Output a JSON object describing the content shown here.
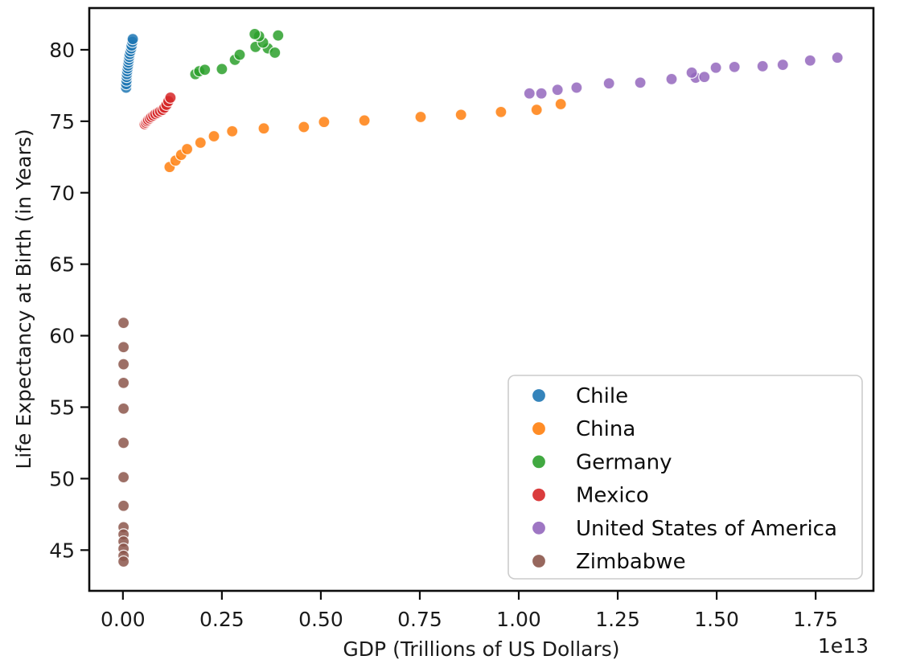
{
  "figure": {
    "background": "#ffffff"
  },
  "chart_data": {
    "type": "scatter",
    "title": "",
    "xlabel": "GDP (Trillions of US Dollars)",
    "ylabel": "Life Expectancy at Birth (in Years)",
    "x_offset_label": "1e13",
    "xlim": [
      -0.085,
      1.896
    ],
    "ylim": [
      42.15,
      82.92
    ],
    "grid": false,
    "axis_color": "#0d0d0d",
    "tick_label_color": "#1a1a1a",
    "xticks": [
      {
        "value": 0.0,
        "label": "0.00"
      },
      {
        "value": 0.25,
        "label": "0.25"
      },
      {
        "value": 0.5,
        "label": "0.50"
      },
      {
        "value": 0.75,
        "label": "0.75"
      },
      {
        "value": 1.0,
        "label": "1.00"
      },
      {
        "value": 1.25,
        "label": "1.25"
      },
      {
        "value": 1.5,
        "label": "1.50"
      },
      {
        "value": 1.75,
        "label": "1.75"
      }
    ],
    "yticks": [
      {
        "value": 45,
        "label": "45"
      },
      {
        "value": 50,
        "label": "50"
      },
      {
        "value": 55,
        "label": "55"
      },
      {
        "value": 60,
        "label": "60"
      },
      {
        "value": 65,
        "label": "65"
      },
      {
        "value": 70,
        "label": "70"
      },
      {
        "value": 75,
        "label": "75"
      },
      {
        "value": 80,
        "label": "80"
      }
    ],
    "legend": {
      "position": "lower right",
      "border_color": "#cccccc",
      "background": "#ffffff",
      "entries": [
        {
          "label": "Chile",
          "color": "#1f77b4"
        },
        {
          "label": "China",
          "color": "#ff7f0e"
        },
        {
          "label": "Germany",
          "color": "#2ca02c"
        },
        {
          "label": "Mexico",
          "color": "#d62728"
        },
        {
          "label": "United States of America",
          "color": "#9467bd"
        },
        {
          "label": "Zimbabwe",
          "color": "#8c564b"
        }
      ]
    },
    "series": [
      {
        "name": "Chile",
        "color": "#1f77b4",
        "points": [
          [
            0.008,
            77.35
          ],
          [
            0.0085,
            77.6
          ],
          [
            0.009,
            77.85
          ],
          [
            0.0095,
            78.1
          ],
          [
            0.01,
            78.3
          ],
          [
            0.011,
            78.5
          ],
          [
            0.012,
            78.7
          ],
          [
            0.013,
            78.9
          ],
          [
            0.014,
            79.1
          ],
          [
            0.015,
            79.3
          ],
          [
            0.016,
            79.5
          ],
          [
            0.017,
            79.7
          ],
          [
            0.019,
            79.9
          ],
          [
            0.021,
            80.1
          ],
          [
            0.022,
            80.3
          ],
          [
            0.024,
            80.55
          ],
          [
            0.025,
            80.75
          ]
        ]
      },
      {
        "name": "China",
        "color": "#ff7f0e",
        "points": [
          [
            0.118,
            71.8
          ],
          [
            0.133,
            72.25
          ],
          [
            0.147,
            72.65
          ],
          [
            0.162,
            73.05
          ],
          [
            0.196,
            73.5
          ],
          [
            0.23,
            73.95
          ],
          [
            0.276,
            74.3
          ],
          [
            0.356,
            74.5
          ],
          [
            0.457,
            74.6
          ],
          [
            0.508,
            74.95
          ],
          [
            0.61,
            75.05
          ],
          [
            0.752,
            75.3
          ],
          [
            0.854,
            75.45
          ],
          [
            0.955,
            75.65
          ],
          [
            1.045,
            75.8
          ],
          [
            1.106,
            76.2
          ]
        ]
      },
      {
        "name": "Germany",
        "color": "#2ca02c",
        "points": [
          [
            0.183,
            78.3
          ],
          [
            0.193,
            78.5
          ],
          [
            0.207,
            78.6
          ],
          [
            0.25,
            78.65
          ],
          [
            0.283,
            79.3
          ],
          [
            0.295,
            79.65
          ],
          [
            0.366,
            80.1
          ],
          [
            0.384,
            79.8
          ],
          [
            0.335,
            80.2
          ],
          [
            0.354,
            80.5
          ],
          [
            0.344,
            80.95
          ],
          [
            0.333,
            81.1
          ],
          [
            0.392,
            81.0
          ]
        ]
      },
      {
        "name": "Mexico",
        "color": "#d62728",
        "points": [
          [
            0.055,
            74.8
          ],
          [
            0.058,
            74.9
          ],
          [
            0.061,
            75.0
          ],
          [
            0.064,
            75.1
          ],
          [
            0.068,
            75.2
          ],
          [
            0.072,
            75.3
          ],
          [
            0.077,
            75.4
          ],
          [
            0.082,
            75.5
          ],
          [
            0.088,
            75.6
          ],
          [
            0.094,
            75.7
          ],
          [
            0.1,
            75.8
          ],
          [
            0.105,
            75.95
          ],
          [
            0.11,
            76.15
          ],
          [
            0.115,
            76.4
          ],
          [
            0.12,
            76.65
          ]
        ]
      },
      {
        "name": "United States of America",
        "color": "#9467bd",
        "points": [
          [
            1.027,
            76.95
          ],
          [
            1.057,
            76.95
          ],
          [
            1.098,
            77.2
          ],
          [
            1.146,
            77.35
          ],
          [
            1.228,
            77.65
          ],
          [
            1.307,
            77.7
          ],
          [
            1.386,
            77.95
          ],
          [
            1.447,
            78.05
          ],
          [
            1.469,
            78.1
          ],
          [
            1.437,
            78.4
          ],
          [
            1.498,
            78.75
          ],
          [
            1.545,
            78.8
          ],
          [
            1.616,
            78.85
          ],
          [
            1.667,
            78.95
          ],
          [
            1.736,
            79.25
          ],
          [
            1.805,
            79.45
          ]
        ]
      },
      {
        "name": "Zimbabwe",
        "color": "#8c564b",
        "points": [
          [
            0.0015,
            60.9
          ],
          [
            0.0015,
            59.2
          ],
          [
            0.0015,
            58.0
          ],
          [
            0.0015,
            56.7
          ],
          [
            0.0015,
            54.9
          ],
          [
            0.0015,
            52.5
          ],
          [
            0.0015,
            50.1
          ],
          [
            0.0015,
            48.1
          ],
          [
            0.0015,
            46.6
          ],
          [
            0.0015,
            46.1
          ],
          [
            0.0015,
            45.6
          ],
          [
            0.0015,
            45.1
          ],
          [
            0.0015,
            44.6
          ],
          [
            0.0015,
            44.2
          ]
        ]
      }
    ]
  }
}
